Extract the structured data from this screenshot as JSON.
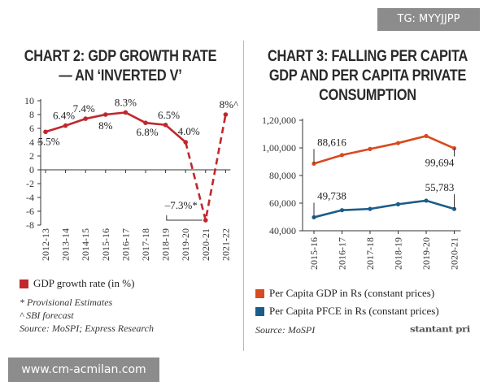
{
  "badge": "TG: MYYJJPP",
  "watermark": "www.cm-acmilan.com",
  "chart_data": [
    {
      "type": "line",
      "title": "CHART 2: GDP GROWTH RATE — AN ‘INVERTED V’",
      "categories": [
        "2012-13",
        "2013-14",
        "2014-15",
        "2015-16",
        "2016-17",
        "2017-18",
        "2018-19",
        "2019-20",
        "2020-21",
        "2021-22"
      ],
      "values": [
        5.5,
        6.4,
        7.4,
        8,
        8.3,
        6.8,
        6.5,
        4.0,
        -7.3,
        8
      ],
      "labels": [
        "5.5%",
        "6.4%",
        "7.4%",
        "8%",
        "8.3%",
        "6.8%",
        "6.5%",
        "4.0%",
        "–7.3%*",
        "8%^"
      ],
      "dashed_from_index": 7,
      "ylim": [
        -8,
        10
      ],
      "yticks": [
        10,
        8,
        6,
        4,
        2,
        0,
        -2,
        -4,
        -6,
        -8
      ],
      "color": "#c1272d",
      "legend": "GDP growth rate (in %)",
      "notes": [
        "* Provisional Estimates",
        "^ SBI forecast",
        "Source: MoSPI; Express Research"
      ]
    },
    {
      "type": "line",
      "title": "CHART 3: FALLING PER CAPITA GDP AND PER CAPITA PRIVATE CONSUMPTION",
      "categories": [
        "2015-16",
        "2016-17",
        "2017-18",
        "2018-19",
        "2019-20",
        "2020-21"
      ],
      "ylim": [
        40000,
        120000
      ],
      "yticks": [
        "1,20,000",
        "1,00,000",
        "80,000",
        "60,000",
        "40,000"
      ],
      "ytick_values": [
        120000,
        100000,
        80000,
        60000,
        40000
      ],
      "series": [
        {
          "name": "Per Capita GDP in Rs (constant prices)",
          "color": "#d84a1f",
          "values": [
            88616,
            94800,
            99200,
            103500,
            108600,
            99694
          ],
          "labels": {
            "0": "88,616",
            "5": "99,694"
          }
        },
        {
          "name": "Per Capita PFCE in Rs (constant prices)",
          "color": "#1a5d8a",
          "values": [
            49738,
            54900,
            55800,
            59200,
            61800,
            55783
          ],
          "labels": {
            "0": "49,738",
            "5": "55,783"
          }
        }
      ],
      "notes": [
        "Source: MoSPI"
      ],
      "logo": "stantant pri"
    }
  ]
}
